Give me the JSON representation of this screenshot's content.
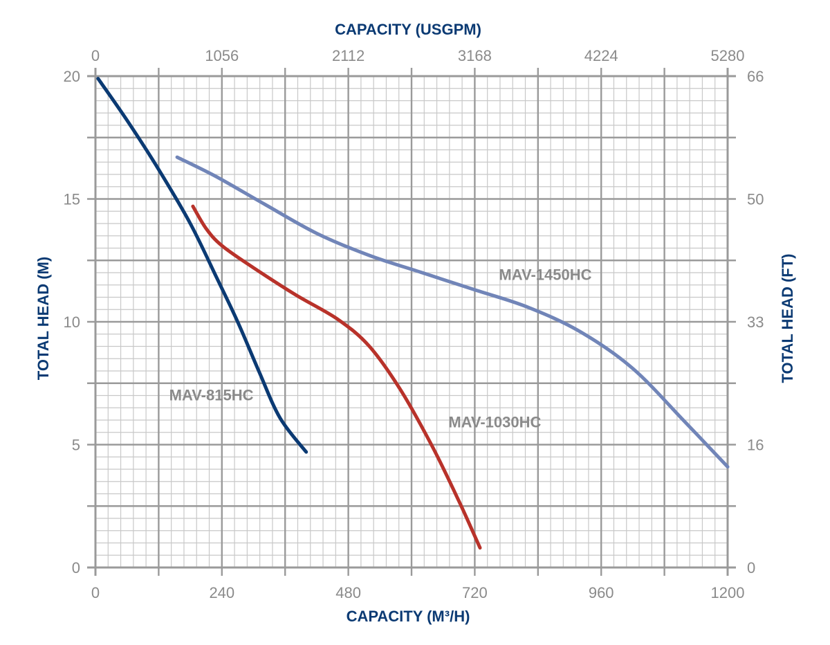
{
  "chart_data": {
    "type": "line",
    "xlabel": "CAPACITY (M³/H)",
    "x2label": "CAPACITY (USGPM)",
    "ylabel": "TOTAL HEAD (M)",
    "y2label": "TOTAL HEAD (FT)",
    "xlim": [
      0,
      1200
    ],
    "ylim": [
      0,
      20
    ],
    "x_ticks": [
      0,
      240,
      480,
      720,
      960,
      1200
    ],
    "x_tick_labels": [
      "0",
      "240",
      "480",
      "720",
      "960",
      "1200"
    ],
    "x2_ticks": [
      0,
      240,
      480,
      720,
      960,
      1200
    ],
    "x2_tick_labels": [
      "0",
      "1056",
      "2112",
      "3168",
      "4224",
      "5280"
    ],
    "y_ticks": [
      0,
      5,
      10,
      15,
      20
    ],
    "y_tick_labels": [
      "0",
      "5",
      "10",
      "15",
      "20"
    ],
    "y2_ticks": [
      0,
      5,
      10,
      15,
      20
    ],
    "y2_tick_labels": [
      "0",
      "16",
      "33",
      "50",
      "66"
    ],
    "grid": true,
    "colors": {
      "grid": "#c8c8c8",
      "axis": "#9a9a9a",
      "title": "#0b3a73"
    },
    "series": [
      {
        "name": "MAV-815HC",
        "color": "#0b3a73",
        "x": [
          5,
          60,
          120,
          180,
          230,
          270,
          310,
          350,
          400
        ],
        "y": [
          19.9,
          18.2,
          16.2,
          14.0,
          11.8,
          10.0,
          8.0,
          6.1,
          4.7
        ],
        "label_pos": [
          140,
          6.8
        ]
      },
      {
        "name": "MAV-1030HC",
        "color": "#b8322a",
        "x": [
          185,
          210,
          240,
          300,
          380,
          460,
          520,
          580,
          640,
          690,
          730
        ],
        "y": [
          14.7,
          13.8,
          13.1,
          12.2,
          11.1,
          10.1,
          9.0,
          7.2,
          4.9,
          2.7,
          0.8
        ],
        "label_pos": [
          670,
          5.7
        ]
      },
      {
        "name": "MAV-1450HC",
        "color": "#7185b8",
        "x": [
          155,
          230,
          320,
          420,
          520,
          620,
          720,
          820,
          920,
          1020,
          1120,
          1200
        ],
        "y": [
          16.7,
          15.9,
          14.8,
          13.6,
          12.7,
          12.0,
          11.3,
          10.6,
          9.6,
          8.1,
          5.9,
          4.1
        ],
        "label_pos": [
          766,
          11.7
        ]
      }
    ]
  }
}
